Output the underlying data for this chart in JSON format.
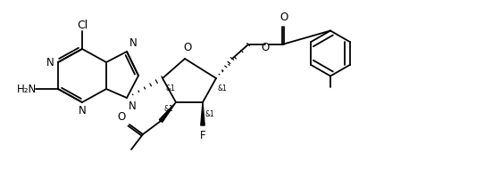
{
  "background_color": "#ffffff",
  "line_color": "#000000",
  "line_width": 1.3,
  "font_size": 8.5,
  "xlim": [
    0,
    5.42
  ],
  "ylim": [
    0,
    2.08
  ]
}
